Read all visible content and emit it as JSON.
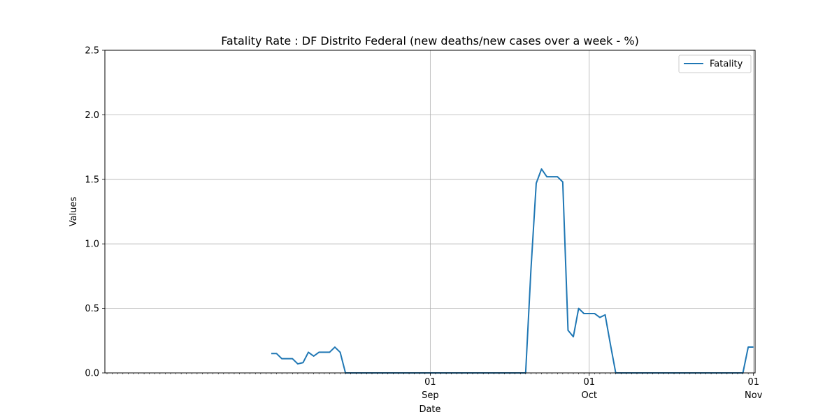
{
  "chart_data": {
    "type": "line",
    "title": "Fatality Rate : DF Distrito Federal (new deaths/new cases over a week - %)",
    "xlabel": "Date",
    "ylabel": "Values",
    "xlim": [
      "2020-08-01",
      "2020-11-01"
    ],
    "ylim": [
      0,
      2.5
    ],
    "grid": true,
    "legend_position": "top-right",
    "x_major_ticks": [
      {
        "date": "2020-09-01",
        "day": "01",
        "month": "Sep"
      },
      {
        "date": "2020-10-01",
        "day": "01",
        "month": "Oct"
      },
      {
        "date": "2020-11-01",
        "day": "01",
        "month": "Nov"
      }
    ],
    "y_ticks": [
      {
        "value": 0.0,
        "label": "0.0"
      },
      {
        "value": 0.5,
        "label": "0.5"
      },
      {
        "value": 1.0,
        "label": "1.0"
      },
      {
        "value": 1.5,
        "label": "1.5"
      },
      {
        "value": 2.0,
        "label": "2.0"
      },
      {
        "value": 2.5,
        "label": "2.5"
      }
    ],
    "series": [
      {
        "name": "Fatality",
        "color": "#1f77b4",
        "x": [
          "2020-08-02",
          "2020-08-03",
          "2020-08-04",
          "2020-08-05",
          "2020-08-06",
          "2020-08-07",
          "2020-08-08",
          "2020-08-09",
          "2020-08-10",
          "2020-08-11",
          "2020-08-12",
          "2020-08-13",
          "2020-08-14",
          "2020-08-15",
          "2020-08-16",
          "2020-08-17",
          "2020-08-18",
          "2020-08-19",
          "2020-08-20",
          "2020-08-21",
          "2020-08-22",
          "2020-08-23",
          "2020-08-24",
          "2020-08-25",
          "2020-08-26",
          "2020-08-27",
          "2020-08-28",
          "2020-08-29",
          "2020-08-30",
          "2020-08-31",
          "2020-09-01",
          "2020-09-02",
          "2020-09-03",
          "2020-09-04",
          "2020-09-05",
          "2020-09-06",
          "2020-09-07",
          "2020-09-08",
          "2020-09-09",
          "2020-09-10",
          "2020-09-11",
          "2020-09-12",
          "2020-09-13",
          "2020-09-14",
          "2020-09-15",
          "2020-09-16",
          "2020-09-17",
          "2020-09-18",
          "2020-09-19",
          "2020-09-20",
          "2020-09-21",
          "2020-09-22",
          "2020-09-23",
          "2020-09-24",
          "2020-09-25",
          "2020-09-26",
          "2020-09-27",
          "2020-09-28",
          "2020-09-29",
          "2020-09-30",
          "2020-10-01",
          "2020-10-02",
          "2020-10-03",
          "2020-10-04",
          "2020-10-05",
          "2020-10-06",
          "2020-10-07",
          "2020-10-08",
          "2020-10-09",
          "2020-10-10",
          "2020-10-11",
          "2020-10-12",
          "2020-10-13",
          "2020-10-14",
          "2020-10-15",
          "2020-10-16",
          "2020-10-17",
          "2020-10-18",
          "2020-10-19",
          "2020-10-20",
          "2020-10-21",
          "2020-10-22",
          "2020-10-23",
          "2020-10-24",
          "2020-10-25",
          "2020-10-26",
          "2020-10-27",
          "2020-10-28",
          "2020-10-29",
          "2020-10-30",
          "2020-10-31",
          "2020-11-01"
        ],
        "values": [
          0.15,
          0.15,
          0.11,
          0.11,
          0.11,
          0.07,
          0.08,
          0.16,
          0.13,
          0.16,
          0.16,
          0.16,
          0.2,
          0.16,
          0.0,
          0.0,
          0.0,
          0.0,
          0.0,
          0.0,
          0.0,
          0.0,
          0.0,
          0.0,
          0.0,
          0.0,
          0.0,
          0.0,
          0.0,
          0.0,
          0.0,
          0.0,
          0.0,
          0.0,
          0.0,
          0.0,
          0.0,
          0.0,
          0.0,
          0.0,
          0.0,
          0.0,
          0.0,
          0.0,
          0.0,
          0.0,
          0.0,
          0.0,
          0.0,
          0.8,
          1.47,
          1.58,
          1.52,
          1.52,
          1.52,
          1.48,
          0.33,
          0.28,
          0.5,
          0.46,
          0.46,
          0.46,
          0.43,
          0.45,
          0.22,
          0.0,
          0.0,
          0.0,
          0.0,
          0.0,
          0.0,
          0.0,
          0.0,
          0.0,
          0.0,
          0.0,
          0.0,
          0.0,
          0.0,
          0.0,
          0.0,
          0.0,
          0.0,
          0.0,
          0.0,
          0.0,
          0.0,
          0.0,
          0.0,
          0.0,
          0.2,
          0.2
        ]
      }
    ]
  }
}
